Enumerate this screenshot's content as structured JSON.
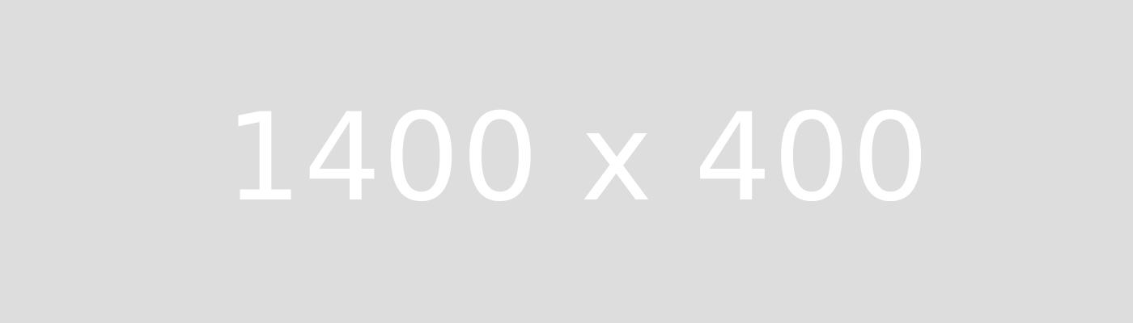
{
  "placeholder": {
    "label": "1400 x 400",
    "background_color": "#dddddd",
    "text_color": "#ffffff"
  }
}
